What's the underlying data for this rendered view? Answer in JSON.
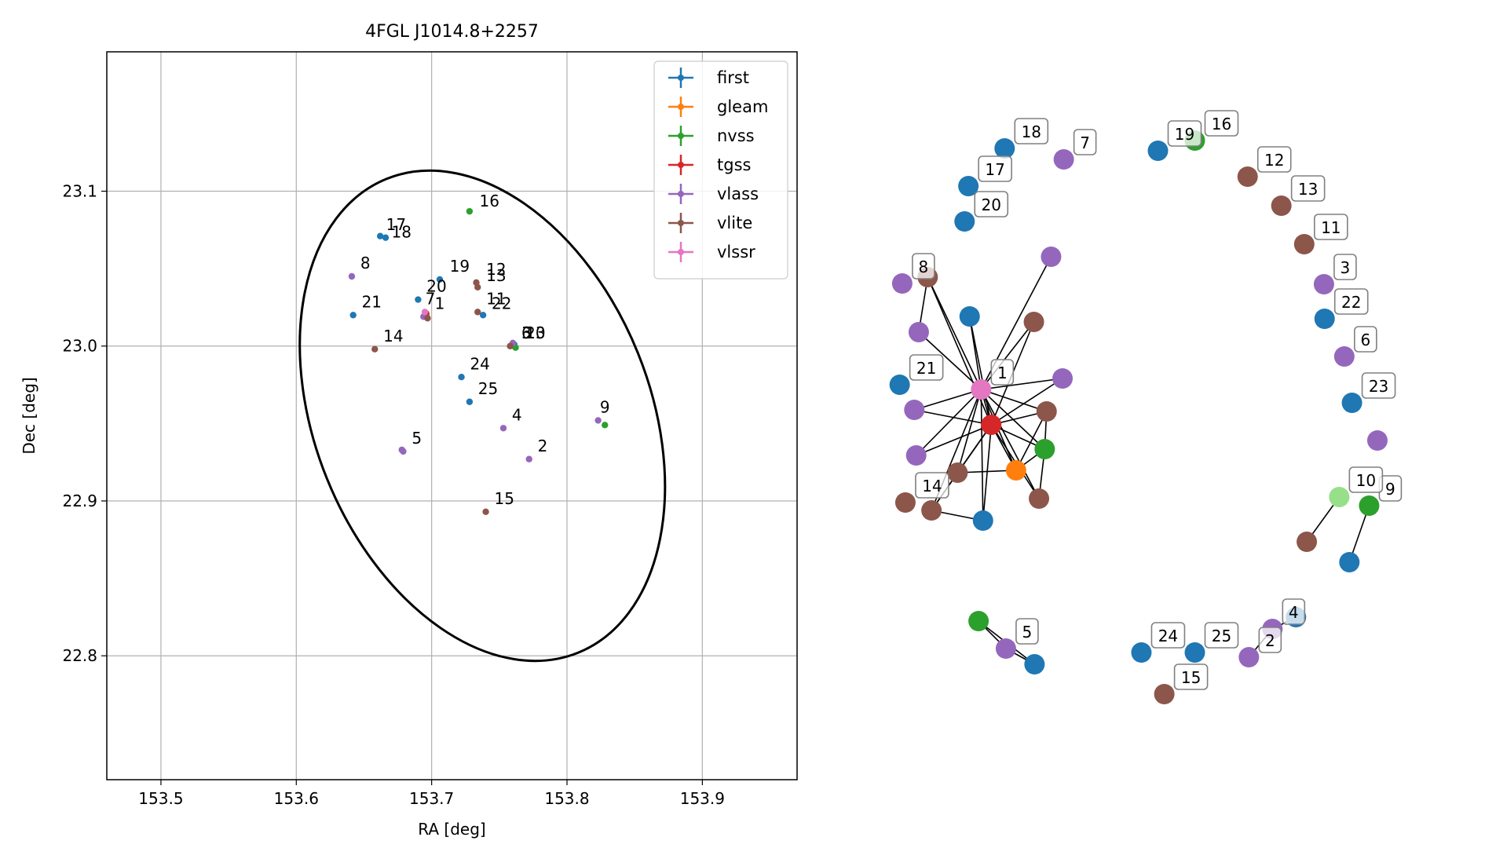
{
  "chart_data": [
    {
      "type": "scatter",
      "title": "4FGL J1014.8+2257",
      "xlabel": "RA [deg]",
      "ylabel": "Dec [deg]",
      "xlim": [
        153.46,
        153.97
      ],
      "ylim": [
        22.72,
        23.19
      ],
      "xticks": [
        153.5,
        153.6,
        153.7,
        153.8,
        153.9
      ],
      "xtick_labels": [
        "153.5",
        "153.6",
        "153.7",
        "153.8",
        "153.9"
      ],
      "yticks": [
        22.8,
        22.9,
        23.0,
        23.1
      ],
      "ytick_labels": [
        "22.8",
        "22.9",
        "23.0",
        "23.1"
      ],
      "grid": true,
      "legend_position": "top-right",
      "series": [
        {
          "name": "first",
          "color": "#1f77b4",
          "points": [
            {
              "x": 153.662,
              "y": 23.071
            },
            {
              "x": 153.666,
              "y": 23.07
            },
            {
              "x": 153.69,
              "y": 23.03
            },
            {
              "x": 153.642,
              "y": 23.02
            },
            {
              "x": 153.706,
              "y": 23.043
            },
            {
              "x": 153.738,
              "y": 23.02
            },
            {
              "x": 153.722,
              "y": 22.98
            },
            {
              "x": 153.728,
              "y": 22.964
            },
            {
              "x": 153.761,
              "y": 23.001
            }
          ]
        },
        {
          "name": "gleam",
          "color": "#ff7f0e",
          "points": [
            {
              "x": 153.696,
              "y": 23.02
            }
          ]
        },
        {
          "name": "nvss",
          "color": "#2ca02c",
          "points": [
            {
              "x": 153.728,
              "y": 23.087
            },
            {
              "x": 153.828,
              "y": 22.949
            },
            {
              "x": 153.762,
              "y": 22.999
            }
          ]
        },
        {
          "name": "tgss",
          "color": "#d62728",
          "points": [
            {
              "x": 153.696,
              "y": 23.021
            }
          ]
        },
        {
          "name": "vlass",
          "color": "#9467bd",
          "points": [
            {
              "x": 153.641,
              "y": 23.045
            },
            {
              "x": 153.679,
              "y": 22.932
            },
            {
              "x": 153.678,
              "y": 22.933
            },
            {
              "x": 153.753,
              "y": 22.947
            },
            {
              "x": 153.772,
              "y": 22.927
            },
            {
              "x": 153.823,
              "y": 22.952
            },
            {
              "x": 153.76,
              "y": 23.002
            },
            {
              "x": 153.694,
              "y": 23.019
            }
          ]
        },
        {
          "name": "vlite",
          "color": "#8c564b",
          "points": [
            {
              "x": 153.733,
              "y": 23.041
            },
            {
              "x": 153.734,
              "y": 23.038
            },
            {
              "x": 153.734,
              "y": 23.022
            },
            {
              "x": 153.658,
              "y": 22.998
            },
            {
              "x": 153.74,
              "y": 22.893
            },
            {
              "x": 153.758,
              "y": 23.0
            },
            {
              "x": 153.697,
              "y": 23.018
            }
          ]
        },
        {
          "name": "vlssr",
          "color": "#e377c2",
          "points": [
            {
              "x": 153.695,
              "y": 23.022
            }
          ]
        }
      ],
      "point_labels": [
        {
          "text": "16",
          "x": 153.733,
          "y": 23.088
        },
        {
          "text": "17",
          "x": 153.664,
          "y": 23.073
        },
        {
          "text": "18",
          "x": 153.668,
          "y": 23.068
        },
        {
          "text": "8",
          "x": 153.645,
          "y": 23.048
        },
        {
          "text": "19",
          "x": 153.711,
          "y": 23.046
        },
        {
          "text": "12",
          "x": 153.738,
          "y": 23.044
        },
        {
          "text": "13",
          "x": 153.738,
          "y": 23.04
        },
        {
          "text": "20",
          "x": 153.694,
          "y": 23.033
        },
        {
          "text": "21",
          "x": 153.646,
          "y": 23.023
        },
        {
          "text": "7",
          "x": 153.693,
          "y": 23.025
        },
        {
          "text": "1",
          "x": 153.7,
          "y": 23.022
        },
        {
          "text": "11",
          "x": 153.738,
          "y": 23.025
        },
        {
          "text": "22",
          "x": 153.742,
          "y": 23.022
        },
        {
          "text": "6",
          "x": 153.764,
          "y": 23.003
        },
        {
          "text": "3",
          "x": 153.764,
          "y": 23.003
        },
        {
          "text": "10",
          "x": 153.767,
          "y": 23.003
        },
        {
          "text": "23",
          "x": 153.767,
          "y": 23.003
        },
        {
          "text": "14",
          "x": 153.662,
          "y": 23.001
        },
        {
          "text": "24",
          "x": 153.726,
          "y": 22.983
        },
        {
          "text": "25",
          "x": 153.732,
          "y": 22.967
        },
        {
          "text": "9",
          "x": 153.822,
          "y": 22.955
        },
        {
          "text": "4",
          "x": 153.757,
          "y": 22.95
        },
        {
          "text": "5",
          "x": 153.683,
          "y": 22.935
        },
        {
          "text": "2",
          "x": 153.776,
          "y": 22.93
        },
        {
          "text": "15",
          "x": 153.744,
          "y": 22.896
        }
      ],
      "ellipse": {
        "cx": 153.7375,
        "cy": 22.955,
        "rx": 0.118,
        "ry": 0.165,
        "angle": -22,
        "color": "#000000"
      }
    },
    {
      "type": "network",
      "nodes": [
        {
          "id": "1",
          "color": "#e377c2",
          "x": 0.172,
          "y": 0.446,
          "label": "1"
        },
        {
          "id": "hub_tgss",
          "color": "#d62728",
          "x": 0.188,
          "y": 0.491
        },
        {
          "id": "hub_gleam",
          "color": "#ff7f0e",
          "x": 0.227,
          "y": 0.549
        },
        {
          "id": "a_first",
          "color": "#1f77b4",
          "x": 0.154,
          "y": 0.353
        },
        {
          "id": "a_vlass_top",
          "color": "#9467bd",
          "x": 0.282,
          "y": 0.277
        },
        {
          "id": "a_vlite1",
          "color": "#8c564b",
          "x": 0.255,
          "y": 0.36
        },
        {
          "id": "a_vlass2",
          "color": "#9467bd",
          "x": 0.3,
          "y": 0.432
        },
        {
          "id": "a_vlite2",
          "color": "#8c564b",
          "x": 0.275,
          "y": 0.474
        },
        {
          "id": "a_nvss",
          "color": "#2ca02c",
          "x": 0.272,
          "y": 0.522
        },
        {
          "id": "a_vlite3",
          "color": "#8c564b",
          "x": 0.263,
          "y": 0.585
        },
        {
          "id": "a_first2",
          "color": "#1f77b4",
          "x": 0.175,
          "y": 0.613
        },
        {
          "id": "a_vlite4",
          "color": "#8c564b",
          "x": 0.135,
          "y": 0.552
        },
        {
          "id": "a_vlass3",
          "color": "#9467bd",
          "x": 0.07,
          "y": 0.53
        },
        {
          "id": "a_vlass4",
          "color": "#9467bd",
          "x": 0.067,
          "y": 0.472
        },
        {
          "id": "a_vlass5",
          "color": "#9467bd",
          "x": 0.074,
          "y": 0.373
        },
        {
          "id": "8",
          "color": "#9467bd",
          "x": 0.048,
          "y": 0.311,
          "label": "8"
        },
        {
          "id": "8b",
          "color": "#8c564b",
          "x": 0.088,
          "y": 0.303
        },
        {
          "id": "21",
          "color": "#1f77b4",
          "x": 0.044,
          "y": 0.44,
          "label": "21"
        },
        {
          "id": "14",
          "color": "#8c564b",
          "x": 0.053,
          "y": 0.59,
          "label": "14"
        },
        {
          "id": "14b",
          "color": "#8c564b",
          "x": 0.094,
          "y": 0.6
        },
        {
          "id": "20",
          "color": "#1f77b4",
          "x": 0.146,
          "y": 0.232,
          "label": "20"
        },
        {
          "id": "17",
          "color": "#1f77b4",
          "x": 0.152,
          "y": 0.187,
          "label": "17"
        },
        {
          "id": "18",
          "color": "#1f77b4",
          "x": 0.209,
          "y": 0.139,
          "label": "18"
        },
        {
          "id": "7",
          "color": "#9467bd",
          "x": 0.302,
          "y": 0.153,
          "label": "7"
        },
        {
          "id": "19",
          "color": "#1f77b4",
          "x": 0.45,
          "y": 0.142,
          "label": "19"
        },
        {
          "id": "16",
          "color": "#2ca02c",
          "x": 0.508,
          "y": 0.129,
          "label": "16"
        },
        {
          "id": "12",
          "color": "#8c564b",
          "x": 0.591,
          "y": 0.175,
          "label": "12"
        },
        {
          "id": "13",
          "color": "#8c564b",
          "x": 0.644,
          "y": 0.212,
          "label": "13"
        },
        {
          "id": "11",
          "color": "#8c564b",
          "x": 0.68,
          "y": 0.261,
          "label": "11"
        },
        {
          "id": "3",
          "color": "#9467bd",
          "x": 0.711,
          "y": 0.312,
          "label": "3"
        },
        {
          "id": "22",
          "color": "#1f77b4",
          "x": 0.712,
          "y": 0.356,
          "label": "22"
        },
        {
          "id": "6",
          "color": "#9467bd",
          "x": 0.743,
          "y": 0.404,
          "label": "6"
        },
        {
          "id": "23",
          "color": "#1f77b4",
          "x": 0.755,
          "y": 0.463,
          "label": "23"
        },
        {
          "id": "9b",
          "color": "#9467bd",
          "x": 0.795,
          "y": 0.511
        },
        {
          "id": "9",
          "color": "#2ca02c",
          "x": 0.782,
          "y": 0.594,
          "label": "9"
        },
        {
          "id": "9c",
          "color": "#1f77b4",
          "x": 0.751,
          "y": 0.666
        },
        {
          "id": "10",
          "color": "#98df8a",
          "x": 0.735,
          "y": 0.583,
          "label": "10"
        },
        {
          "id": "10b",
          "color": "#8c564b",
          "x": 0.684,
          "y": 0.64
        },
        {
          "id": "4",
          "color": "#9467bd",
          "x": 0.63,
          "y": 0.751,
          "label": "4"
        },
        {
          "id": "4b",
          "color": "#1f77b4",
          "x": 0.667,
          "y": 0.736
        },
        {
          "id": "2",
          "color": "#9467bd",
          "x": 0.593,
          "y": 0.787,
          "label": "2"
        },
        {
          "id": "25",
          "color": "#1f77b4",
          "x": 0.508,
          "y": 0.781,
          "label": "25"
        },
        {
          "id": "24",
          "color": "#1f77b4",
          "x": 0.424,
          "y": 0.781,
          "label": "24"
        },
        {
          "id": "15",
          "color": "#8c564b",
          "x": 0.46,
          "y": 0.834,
          "label": "15"
        },
        {
          "id": "5",
          "color": "#9467bd",
          "x": 0.211,
          "y": 0.776,
          "label": "5"
        },
        {
          "id": "5b",
          "color": "#2ca02c",
          "x": 0.168,
          "y": 0.741
        },
        {
          "id": "5c",
          "color": "#1f77b4",
          "x": 0.256,
          "y": 0.796
        }
      ],
      "edges": [
        [
          "1",
          "hub_tgss"
        ],
        [
          "1",
          "hub_gleam"
        ],
        [
          "1",
          "a_first"
        ],
        [
          "1",
          "a_vlass_top"
        ],
        [
          "1",
          "a_vlite1"
        ],
        [
          "1",
          "a_vlass2"
        ],
        [
          "1",
          "a_vlite2"
        ],
        [
          "1",
          "a_nvss"
        ],
        [
          "1",
          "a_vlite3"
        ],
        [
          "1",
          "a_first2"
        ],
        [
          "1",
          "a_vlite4"
        ],
        [
          "1",
          "a_vlass3"
        ],
        [
          "1",
          "a_vlass4"
        ],
        [
          "1",
          "a_vlass5"
        ],
        [
          "1",
          "8b"
        ],
        [
          "1",
          "14b"
        ],
        [
          "hub_tgss",
          "a_first"
        ],
        [
          "hub_tgss",
          "a_vlite1"
        ],
        [
          "hub_tgss",
          "a_vlass2"
        ],
        [
          "hub_tgss",
          "a_vlite2"
        ],
        [
          "hub_tgss",
          "a_nvss"
        ],
        [
          "hub_tgss",
          "a_vlite3"
        ],
        [
          "hub_tgss",
          "a_first2"
        ],
        [
          "hub_tgss",
          "a_vlite4"
        ],
        [
          "hub_tgss",
          "a_vlass3"
        ],
        [
          "hub_tgss",
          "a_vlass4"
        ],
        [
          "hub_tgss",
          "hub_gleam"
        ],
        [
          "hub_tgss",
          "8b"
        ],
        [
          "hub_tgss",
          "14b"
        ],
        [
          "hub_gleam",
          "a_nvss"
        ],
        [
          "hub_gleam",
          "a_vlite2"
        ],
        [
          "hub_gleam",
          "a_vlite4"
        ],
        [
          "a_nvss",
          "a_vlite2"
        ],
        [
          "a_nvss",
          "a_vlite3"
        ],
        [
          "a_vlite4",
          "14b"
        ],
        [
          "14b",
          "a_first2"
        ],
        [
          "8b",
          "a_vlass5"
        ],
        [
          "9",
          "9c"
        ],
        [
          "10",
          "10b"
        ],
        [
          "4",
          "4b"
        ],
        [
          "4",
          "2"
        ],
        [
          "5",
          "5b"
        ],
        [
          "5",
          "5c"
        ],
        [
          "5b",
          "5c"
        ]
      ]
    }
  ]
}
